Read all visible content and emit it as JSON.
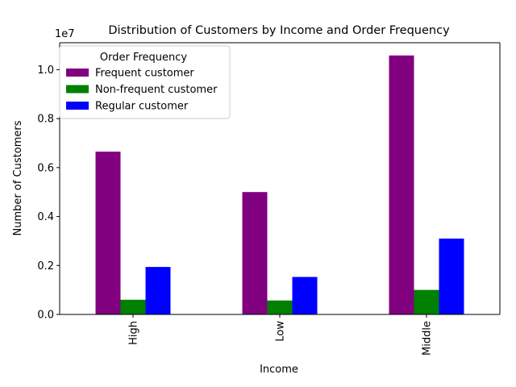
{
  "chart_data": {
    "type": "bar",
    "title": "Distribution of Customers by Income and Order Frequency",
    "xlabel": "Income",
    "ylabel": "Number of Customers",
    "categories": [
      "High",
      "Low",
      "Middle"
    ],
    "series": [
      {
        "name": "Frequent customer",
        "color": "#800080",
        "values": [
          6650000,
          5000000,
          10580000
        ]
      },
      {
        "name": "Non-frequent customer",
        "color": "#008000",
        "values": [
          600000,
          570000,
          1000000
        ]
      },
      {
        "name": "Regular customer",
        "color": "#0000ff",
        "values": [
          1940000,
          1530000,
          3100000
        ]
      }
    ],
    "ylim": [
      0,
      11100000
    ],
    "yticks": [
      0,
      2000000,
      4000000,
      6000000,
      8000000,
      10000000
    ],
    "ytick_labels": [
      "0.0",
      "0.2",
      "0.4",
      "0.6",
      "0.8",
      "1.0"
    ],
    "y_offset_label": "1e7",
    "legend": {
      "title": "Order Frequency",
      "placement": "top-left"
    },
    "grid": false
  }
}
